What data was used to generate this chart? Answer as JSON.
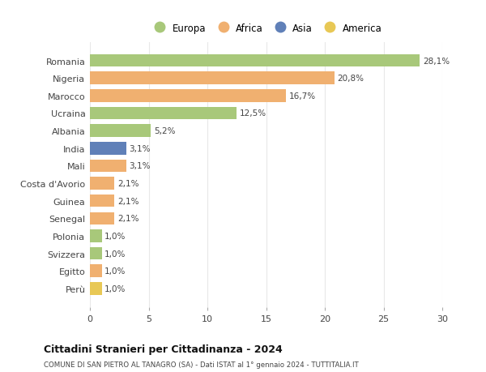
{
  "categories": [
    "Romania",
    "Nigeria",
    "Marocco",
    "Ucraina",
    "Albania",
    "India",
    "Mali",
    "Costa d'Avorio",
    "Guinea",
    "Senegal",
    "Polonia",
    "Svizzera",
    "Egitto",
    "Perù"
  ],
  "values": [
    28.1,
    20.8,
    16.7,
    12.5,
    5.2,
    3.1,
    3.1,
    2.1,
    2.1,
    2.1,
    1.0,
    1.0,
    1.0,
    1.0
  ],
  "labels": [
    "28,1%",
    "20,8%",
    "16,7%",
    "12,5%",
    "5,2%",
    "3,1%",
    "3,1%",
    "2,1%",
    "2,1%",
    "2,1%",
    "1,0%",
    "1,0%",
    "1,0%",
    "1,0%"
  ],
  "colors": [
    "#a8c87a",
    "#f0b070",
    "#f0b070",
    "#a8c87a",
    "#a8c87a",
    "#6080b8",
    "#f0b070",
    "#f0b070",
    "#f0b070",
    "#f0b070",
    "#a8c87a",
    "#a8c87a",
    "#f0b070",
    "#e8c855"
  ],
  "legend_labels": [
    "Europa",
    "Africa",
    "Asia",
    "America"
  ],
  "legend_colors": [
    "#a8c87a",
    "#f0b070",
    "#6080b8",
    "#e8c855"
  ],
  "title": "Cittadini Stranieri per Cittadinanza - 2024",
  "subtitle": "COMUNE DI SAN PIETRO AL TANAGRO (SA) - Dati ISTAT al 1° gennaio 2024 - TUTTITALIA.IT",
  "xlim": [
    0,
    30
  ],
  "xticks": [
    0,
    5,
    10,
    15,
    20,
    25,
    30
  ],
  "background_color": "#ffffff",
  "grid_color": "#e8e8e8",
  "bar_height": 0.72
}
